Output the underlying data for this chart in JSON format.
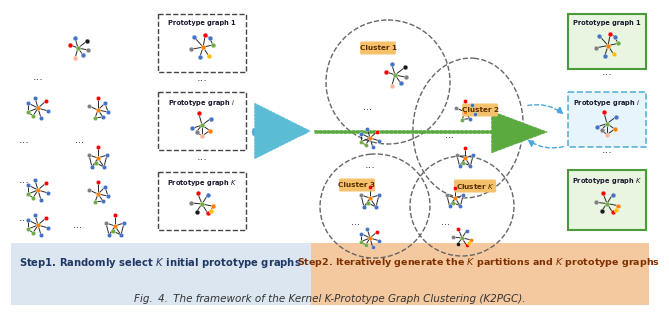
{
  "title": "Fig. 4. The framework of the Kernel K-Prototype Graph Clustering (K2PGC).",
  "step1_label": "Step1. Randomly select $K$ initial prototype graphs",
  "step2_label": "Step2. Iteratively generate the $K$ partitions and $K$ prototype graphs",
  "step1_bg": "#dce6f1",
  "step2_bg": "#f5c9a0",
  "proto1_label": "Prototype graph 1",
  "protoi_label": "Prototype graph $i$",
  "protoK_label": "Prototype graph $K$",
  "cluster1_label": "Cluster 1",
  "cluster2_label": "Cluster 2",
  "cluster3_label": "Cluster 3",
  "clusterK_label": "Cluster $K$",
  "arrow_color": "#4ea6dc",
  "green_arrow_color": "#70ad47"
}
